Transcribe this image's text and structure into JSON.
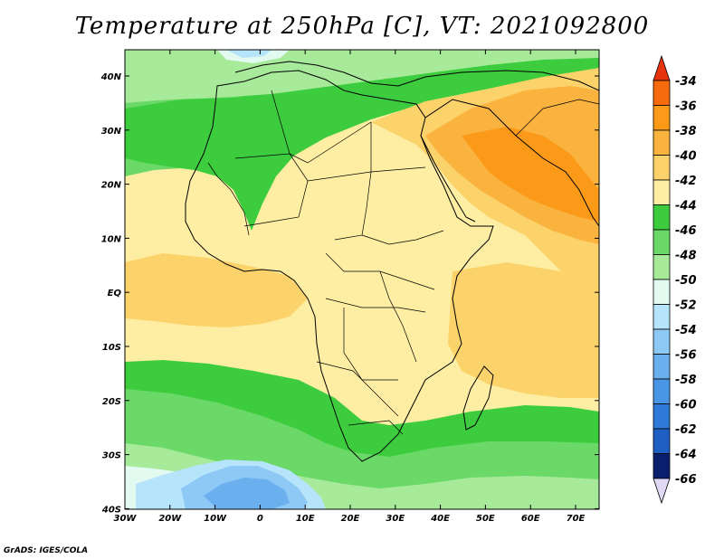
{
  "title": "Temperature at 250hPa [C], VT: 2021092800",
  "credit": "GrADS: IGES/COLA",
  "lon_ticks": [
    "30W",
    "20W",
    "10W",
    "0",
    "10E",
    "20E",
    "30E",
    "40E",
    "50E",
    "60E",
    "70E"
  ],
  "lat_ticks": [
    "40N",
    "30N",
    "20N",
    "10N",
    "EQ",
    "10S",
    "20S",
    "30S",
    "40S"
  ],
  "colorbar": {
    "labels": [
      "-34",
      "-36",
      "-38",
      "-40",
      "-42",
      "-44",
      "-46",
      "-48",
      "-50",
      "-52",
      "-54",
      "-56",
      "-58",
      "-60",
      "-62",
      "-64",
      "-66"
    ],
    "colors": {
      "above_-34": "#e8340e",
      "-34_-36": "#f56a0d",
      "-36_-38": "#fa9a18",
      "-38_-40": "#fbb340",
      "-40_-42": "#fcd26a",
      "-42_-44": "#fdeea3",
      "-44_-46": "#3dcc3d",
      "-46_-48": "#6ad968",
      "-48_-50": "#a6ea9a",
      "-50_-52": "#e3faf0",
      "-52_-54": "#b5e4fb",
      "-54_-56": "#8ec8f5",
      "-56_-58": "#6aafee",
      "-58_-60": "#4a96e6",
      "-60_-62": "#2e7ad8",
      "-62_-64": "#1f5fc4",
      "-64_-66": "#0a1e6e",
      "below_-66": "#e0d9f5"
    }
  }
}
